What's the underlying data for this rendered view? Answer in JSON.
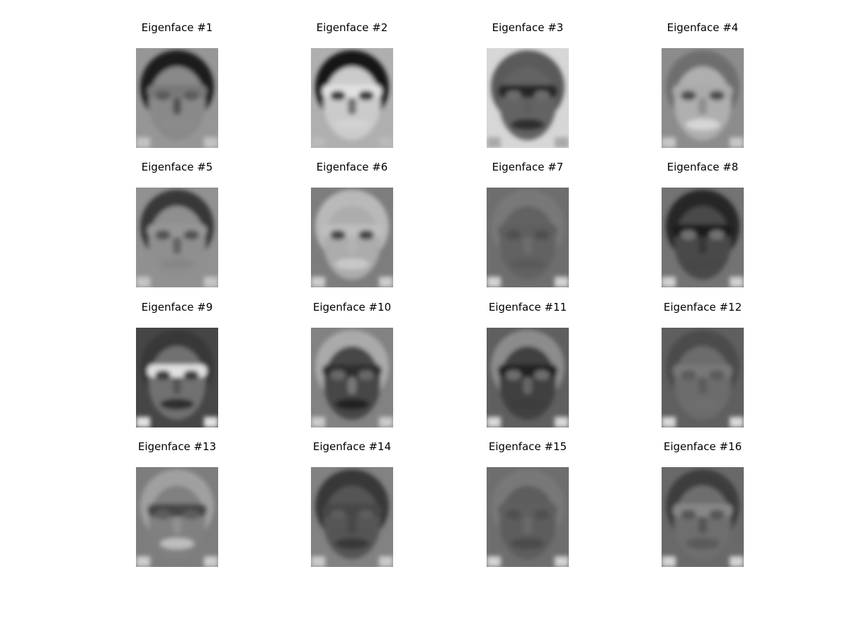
{
  "figure": {
    "panels": [
      {
        "title": "Eigenface #1",
        "tone": {
          "bg": 150,
          "hair": 30,
          "eyes": 120,
          "mouth": 140,
          "polarity": 1
        }
      },
      {
        "title": "Eigenface #2",
        "tone": {
          "bg": 175,
          "hair": 25,
          "eyes": 225,
          "mouth": 210,
          "polarity": 1
        }
      },
      {
        "title": "Eigenface #3",
        "tone": {
          "bg": 215,
          "hair": 90,
          "eyes": 40,
          "mouth": 45,
          "polarity": -1
        }
      },
      {
        "title": "Eigenface #4",
        "tone": {
          "bg": 140,
          "hair": 110,
          "eyes": 170,
          "mouth": 215,
          "polarity": 1
        }
      },
      {
        "title": "Eigenface #5",
        "tone": {
          "bg": 145,
          "hair": 55,
          "eyes": 150,
          "mouth": 135,
          "polarity": 1
        }
      },
      {
        "title": "Eigenface #6",
        "tone": {
          "bg": 125,
          "hair": 185,
          "eyes": 190,
          "mouth": 200,
          "polarity": 1
        }
      },
      {
        "title": "Eigenface #7",
        "tone": {
          "bg": 110,
          "hair": 120,
          "eyes": 95,
          "mouth": 90,
          "polarity": -1
        }
      },
      {
        "title": "Eigenface #8",
        "tone": {
          "bg": 115,
          "hair": 40,
          "eyes": 30,
          "mouth": 70,
          "polarity": -1
        }
      },
      {
        "title": "Eigenface #9",
        "tone": {
          "bg": 70,
          "hair": 55,
          "eyes": 225,
          "mouth": 45,
          "polarity": 1
        }
      },
      {
        "title": "Eigenface #10",
        "tone": {
          "bg": 130,
          "hair": 170,
          "eyes": 45,
          "mouth": 35,
          "polarity": -1
        }
      },
      {
        "title": "Eigenface #11",
        "tone": {
          "bg": 95,
          "hair": 140,
          "eyes": 35,
          "mouth": 60,
          "polarity": -1
        }
      },
      {
        "title": "Eigenface #12",
        "tone": {
          "bg": 95,
          "hair": 75,
          "eyes": 120,
          "mouth": 110,
          "polarity": 1
        }
      },
      {
        "title": "Eigenface #13",
        "tone": {
          "bg": 125,
          "hair": 160,
          "eyes": 70,
          "mouth": 190,
          "polarity": -1
        }
      },
      {
        "title": "Eigenface #14",
        "tone": {
          "bg": 130,
          "hair": 55,
          "eyes": 70,
          "mouth": 55,
          "polarity": -1
        }
      },
      {
        "title": "Eigenface #15",
        "tone": {
          "bg": 110,
          "hair": 120,
          "eyes": 95,
          "mouth": 75,
          "polarity": -1
        }
      },
      {
        "title": "Eigenface #16",
        "tone": {
          "bg": 105,
          "hair": 60,
          "eyes": 135,
          "mouth": 90,
          "polarity": 1
        }
      }
    ]
  }
}
